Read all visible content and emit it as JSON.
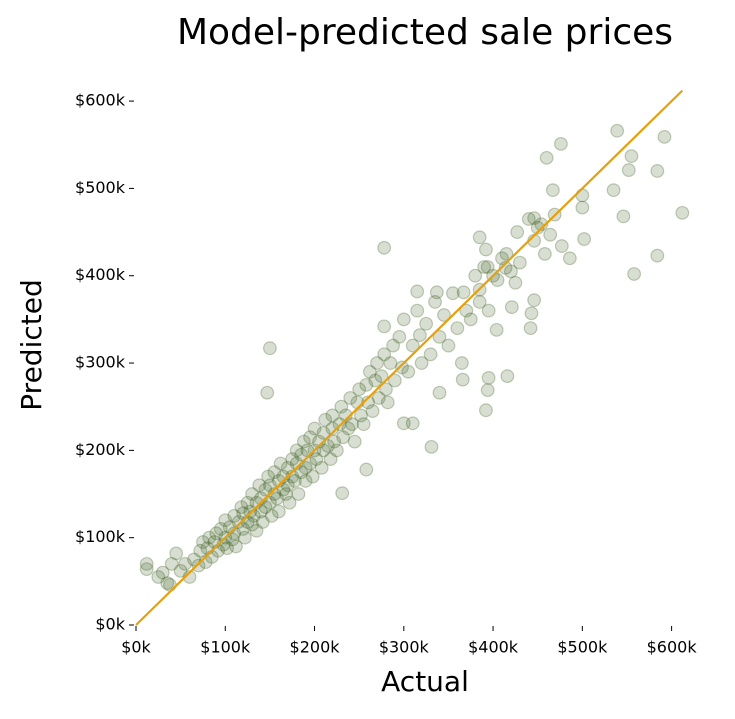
{
  "chart_data": {
    "type": "scatter",
    "title": "Model-predicted sale prices",
    "x_label": "Actual",
    "y_label": "Predicted",
    "color": "#3b5e1f",
    "xlim": [
      0,
      615
    ],
    "ylim": [
      0,
      615
    ],
    "xticks": [
      {
        "value": 0,
        "label": "$0k"
      },
      {
        "value": 100,
        "label": "$100k"
      },
      {
        "value": 200,
        "label": "$200k"
      },
      {
        "value": 300,
        "label": "$300k"
      },
      {
        "value": 400,
        "label": "$400k"
      },
      {
        "value": 500,
        "label": "$500k"
      },
      {
        "value": 600,
        "label": "$600k"
      }
    ],
    "yticks": [
      {
        "value": 0,
        "label": "$0k"
      },
      {
        "value": 100,
        "label": "$100k"
      },
      {
        "value": 200,
        "label": "$200k"
      },
      {
        "value": 300,
        "label": "$300k"
      },
      {
        "value": 400,
        "label": "$400k"
      },
      {
        "value": 500,
        "label": "$500k"
      },
      {
        "value": 600,
        "label": "$600k"
      }
    ],
    "reference_line": {
      "x": [
        0,
        612
      ],
      "y": [
        0,
        612
      ],
      "color": "#e5a00d"
    },
    "x": [
      12,
      12,
      38,
      278,
      150,
      147,
      539,
      592,
      476,
      460,
      555,
      552,
      584,
      535,
      467,
      500,
      500,
      546,
      612,
      469,
      446,
      454,
      464,
      477,
      502,
      486,
      458,
      446,
      427,
      385,
      392,
      415,
      584,
      558,
      394,
      414,
      425,
      446,
      443,
      442,
      421,
      416,
      395,
      394,
      392,
      331,
      310,
      300,
      258,
      231,
      366,
      340,
      404,
      385,
      367,
      337,
      315,
      318,
      278,
      30,
      35,
      40,
      45,
      25,
      50,
      55,
      60,
      65,
      70,
      72,
      75,
      78,
      80,
      82,
      85,
      88,
      90,
      92,
      95,
      98,
      100,
      100,
      102,
      105,
      108,
      110,
      110,
      112,
      115,
      118,
      120,
      120,
      122,
      125,
      125,
      128,
      130,
      130,
      132,
      135,
      135,
      138,
      140,
      140,
      142,
      145,
      145,
      148,
      150,
      150,
      152,
      155,
      155,
      158,
      160,
      160,
      162,
      165,
      165,
      168,
      170,
      170,
      172,
      175,
      175,
      178,
      180,
      180,
      182,
      185,
      185,
      188,
      190,
      190,
      192,
      195,
      195,
      198,
      200,
      200,
      202,
      205,
      208,
      210,
      210,
      212,
      215,
      218,
      220,
      220,
      222,
      225,
      228,
      230,
      232,
      235,
      238,
      240,
      242,
      245,
      248,
      250,
      252,
      255,
      258,
      260,
      262,
      265,
      268,
      270,
      272,
      275,
      278,
      280,
      282,
      285,
      288,
      290,
      295,
      298,
      300,
      305,
      310,
      315,
      320,
      325,
      330,
      335,
      340,
      345,
      350,
      355,
      360,
      365,
      370,
      375,
      380,
      385,
      390,
      395,
      400,
      405,
      410,
      420,
      430,
      440,
      450
    ],
    "y": [
      64,
      70,
      46,
      432,
      317,
      266,
      566,
      559,
      551,
      535,
      537,
      521,
      520,
      498,
      498,
      492,
      478,
      468,
      472,
      470,
      466,
      459,
      447,
      434,
      442,
      420,
      425,
      440,
      450,
      444,
      430,
      425,
      423,
      402,
      410,
      409,
      392,
      372,
      357,
      340,
      364,
      285,
      283,
      269,
      246,
      204,
      231,
      231,
      178,
      151,
      281,
      266,
      338,
      384,
      381,
      381,
      382,
      332,
      342,
      60,
      48,
      70,
      82,
      55,
      62,
      70,
      55,
      75,
      68,
      85,
      95,
      72,
      88,
      100,
      78,
      95,
      105,
      85,
      110,
      92,
      100,
      120,
      88,
      112,
      98,
      125,
      105,
      90,
      118,
      135,
      110,
      128,
      100,
      140,
      118,
      130,
      115,
      150,
      125,
      140,
      108,
      160,
      130,
      145,
      118,
      155,
      135,
      170,
      140,
      160,
      125,
      150,
      175,
      145,
      165,
      130,
      185,
      155,
      170,
      150,
      180,
      160,
      140,
      190,
      170,
      165,
      185,
      200,
      150,
      175,
      195,
      210,
      180,
      165,
      200,
      185,
      215,
      170,
      200,
      225,
      190,
      210,
      180,
      220,
      200,
      235,
      205,
      190,
      225,
      240,
      210,
      200,
      230,
      250,
      215,
      240,
      225,
      260,
      230,
      210,
      255,
      270,
      240,
      230,
      275,
      255,
      290,
      245,
      280,
      300,
      260,
      285,
      310,
      270,
      255,
      300,
      320,
      280,
      330,
      295,
      350,
      290,
      320,
      360,
      300,
      345,
      310,
      370,
      330,
      355,
      320,
      380,
      340,
      300,
      360,
      350,
      400,
      370,
      410,
      360,
      400,
      395,
      420,
      405,
      415,
      465,
      455
    ]
  }
}
